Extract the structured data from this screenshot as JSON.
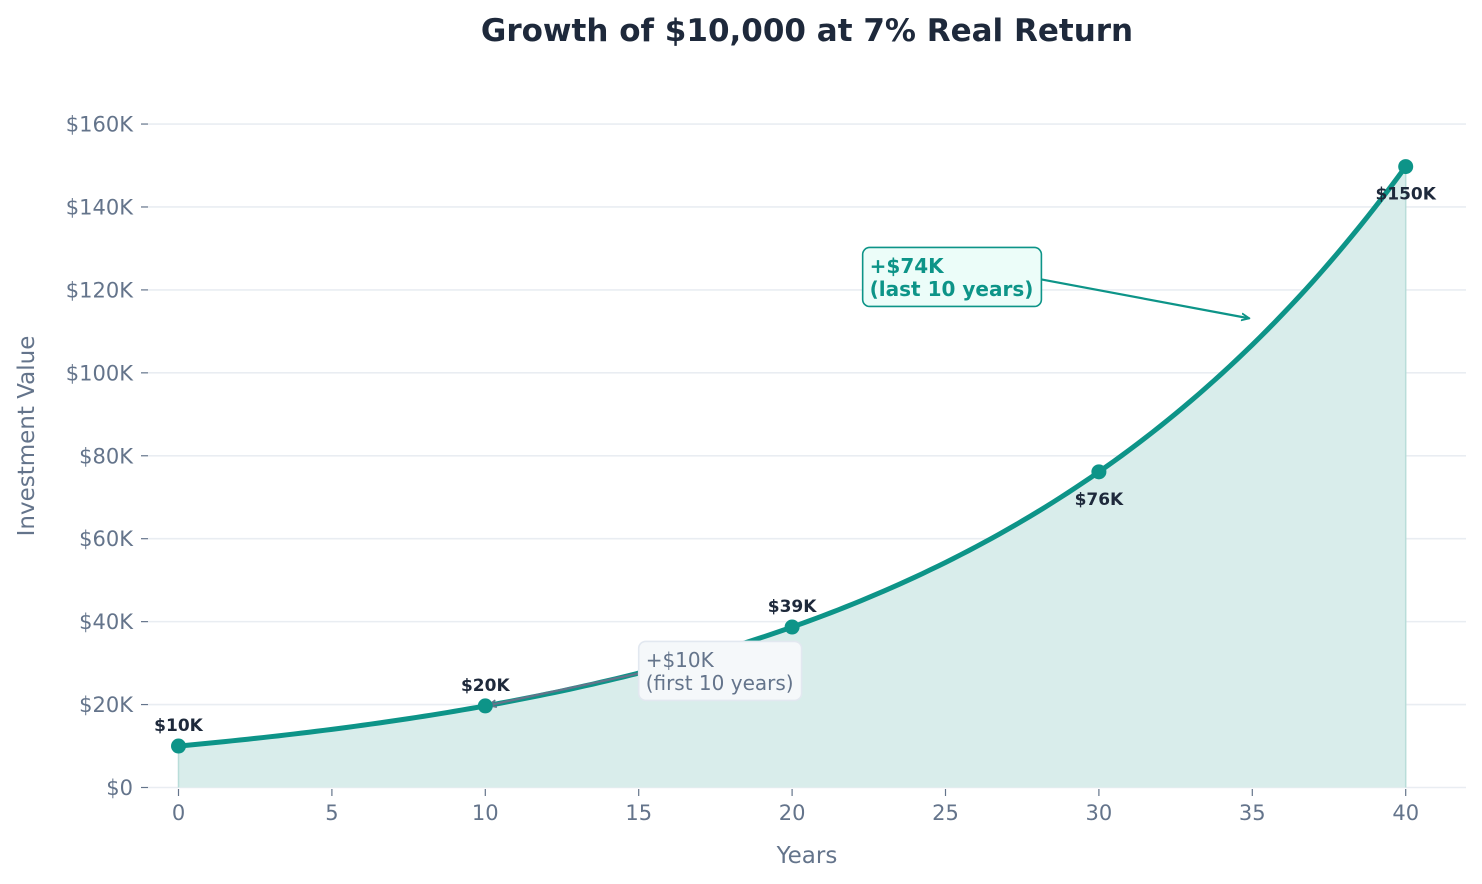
{
  "chart_data": {
    "type": "area",
    "title": "Growth of $10,000 at 7% Real Return",
    "xlabel": "Years",
    "ylabel": "Investment Value",
    "xlim": [
      -1,
      42
    ],
    "ylim": [
      0,
      160000
    ],
    "x_ticks": [
      0,
      5,
      10,
      15,
      20,
      25,
      30,
      35,
      40
    ],
    "x_tick_labels": [
      "0",
      "5",
      "10",
      "15",
      "20",
      "25",
      "30",
      "35",
      "40"
    ],
    "y_ticks": [
      0,
      20000,
      40000,
      60000,
      80000,
      100000,
      120000,
      140000,
      160000
    ],
    "y_tick_labels": [
      "$0",
      "$20K",
      "$40K",
      "$60K",
      "$80K",
      "$100K",
      "$120K",
      "$140K",
      "$160K"
    ],
    "grid": "horizontal",
    "series": [
      {
        "principal": 10000,
        "rate": 0.07,
        "x_range": [
          0,
          40
        ],
        "color": "#0d9488",
        "fill_color": "#d9edeb"
      }
    ],
    "markers": [
      {
        "x": 0,
        "y": 10000,
        "label": "$10K",
        "label_pos": "above"
      },
      {
        "x": 10,
        "y": 19672,
        "label": "$20K",
        "label_pos": "above"
      },
      {
        "x": 20,
        "y": 38697,
        "label": "$39K",
        "label_pos": "above"
      },
      {
        "x": 30,
        "y": 76123,
        "label": "$76K",
        "label_pos": "below"
      },
      {
        "x": 40,
        "y": 149745,
        "label": "$150K",
        "label_pos": "below"
      }
    ],
    "annotations": [
      {
        "lines": [
          "+$10K",
          "(first 10 years)"
        ],
        "text_x": 15,
        "text_y": 28000,
        "arrow_to": [
          10,
          19672
        ],
        "style": "gray"
      },
      {
        "lines": [
          "+$74K",
          "(last 10 years)"
        ],
        "text_x": 22.3,
        "text_y": 123000,
        "arrow_to": [
          35,
          113000
        ],
        "style": "teal"
      }
    ]
  }
}
